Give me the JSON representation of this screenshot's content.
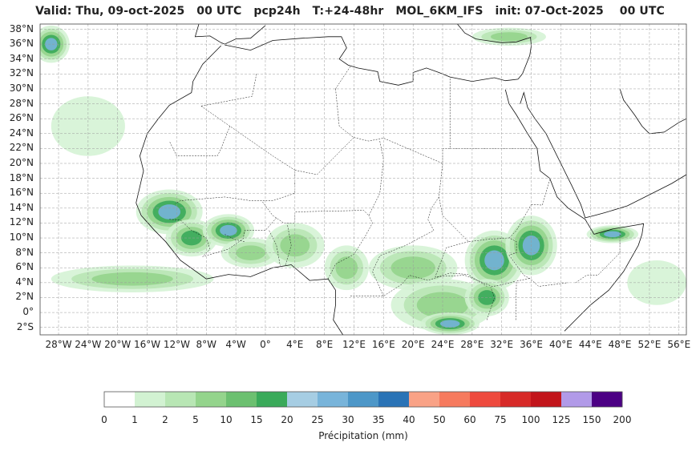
{
  "title": "Valid: Thu, 09-oct-2025   00 UTC   pcp24h   T:+24-48hr   MOL_6KM_IFS   init: 07-Oct-2025    00 UTC",
  "map": {
    "lat_labels": [
      "38°N",
      "36°N",
      "34°N",
      "32°N",
      "30°N",
      "28°N",
      "26°N",
      "24°N",
      "22°N",
      "20°N",
      "18°N",
      "16°N",
      "14°N",
      "12°N",
      "10°N",
      "8°N",
      "6°N",
      "4°N",
      "2°N",
      "0°",
      "2°S"
    ],
    "lat_values": [
      38,
      36,
      34,
      32,
      30,
      28,
      26,
      24,
      22,
      20,
      18,
      16,
      14,
      12,
      10,
      8,
      6,
      4,
      2,
      0,
      -2
    ],
    "lon_labels": [
      "28°W",
      "24°W",
      "20°W",
      "16°W",
      "12°W",
      "8°W",
      "4°W",
      "0°",
      "4°E",
      "8°E",
      "12°E",
      "16°E",
      "20°E",
      "24°E",
      "28°E",
      "32°E",
      "36°E",
      "40°E",
      "44°E",
      "48°E",
      "52°E",
      "56°E"
    ],
    "lon_values": [
      -28,
      -24,
      -20,
      -16,
      -12,
      -8,
      -4,
      0,
      4,
      8,
      12,
      16,
      20,
      24,
      28,
      32,
      36,
      40,
      44,
      48,
      52,
      56
    ],
    "extent": {
      "lon_min": -30.5,
      "lon_max": 57,
      "lat_min": -3,
      "lat_max": 38.7
    },
    "grid": true
  },
  "colorbar": {
    "label": "Précipitation (mm)",
    "ticks": [
      "0",
      "1",
      "2",
      "5",
      "10",
      "15",
      "20",
      "25",
      "30",
      "35",
      "40",
      "50",
      "60",
      "75",
      "100",
      "125",
      "150",
      "200"
    ],
    "colors": [
      "#ffffff",
      "#d2f2d2",
      "#b8e6b4",
      "#94d48c",
      "#6cc070",
      "#3aaa5a",
      "#a6cde3",
      "#78b4da",
      "#4d97c8",
      "#2a73b6",
      "#f9a286",
      "#f67a5e",
      "#ee4a3e",
      "#d72a28",
      "#c2151b",
      "#b19ae8",
      "#4c0084"
    ]
  },
  "precip_regions": [
    {
      "name": "west-africa-senegal",
      "lon": -13,
      "lat": 13.5,
      "rx": 4.5,
      "ry": 3,
      "level": 5
    },
    {
      "name": "guinea",
      "lon": -10,
      "lat": 10,
      "rx": 3.5,
      "ry": 2.5,
      "level": 4
    },
    {
      "name": "mali-burkina",
      "lon": -5,
      "lat": 11,
      "rx": 3.5,
      "ry": 2.2,
      "level": 5
    },
    {
      "name": "ivory-coast",
      "lon": -2,
      "lat": 8,
      "rx": 4,
      "ry": 2,
      "level": 3
    },
    {
      "name": "gulf-guinea-ocean",
      "lon": -18,
      "lat": 4.5,
      "rx": 11,
      "ry": 1.8,
      "level": 3
    },
    {
      "name": "nigeria",
      "lon": 4,
      "lat": 9,
      "rx": 4,
      "ry": 3,
      "level": 3
    },
    {
      "name": "cameroon",
      "lon": 11,
      "lat": 6,
      "rx": 3,
      "ry": 3,
      "level": 3
    },
    {
      "name": "car",
      "lon": 20,
      "lat": 6,
      "rx": 6,
      "ry": 3,
      "level": 3
    },
    {
      "name": "drc",
      "lon": 24,
      "lat": 1,
      "rx": 7,
      "ry": 3.5,
      "level": 3
    },
    {
      "name": "drc-south",
      "lon": 25,
      "lat": -1.5,
      "rx": 4,
      "ry": 1.5,
      "level": 5
    },
    {
      "name": "south-sudan",
      "lon": 31,
      "lat": 7,
      "rx": 4,
      "ry": 4,
      "level": 5
    },
    {
      "name": "ethiopia",
      "lon": 36,
      "lat": 9,
      "rx": 3.5,
      "ry": 4,
      "level": 5
    },
    {
      "name": "uganda",
      "lon": 30,
      "lat": 2,
      "rx": 3,
      "ry": 2.5,
      "level": 4
    },
    {
      "name": "somalia-north",
      "lon": 47,
      "lat": 10.5,
      "rx": 3.5,
      "ry": 1.2,
      "level": 5
    },
    {
      "name": "atlantic-north",
      "lon": -24,
      "lat": 25,
      "rx": 5,
      "ry": 4,
      "level": 1
    },
    {
      "name": "iberia",
      "lon": -29,
      "lat": 36,
      "rx": 2.5,
      "ry": 2.5,
      "level": 5
    },
    {
      "name": "turkey",
      "lon": 33,
      "lat": 37,
      "rx": 5,
      "ry": 1.2,
      "level": 3
    },
    {
      "name": "indian-ocean",
      "lon": 53,
      "lat": 4,
      "rx": 4,
      "ry": 3,
      "level": 1
    }
  ]
}
